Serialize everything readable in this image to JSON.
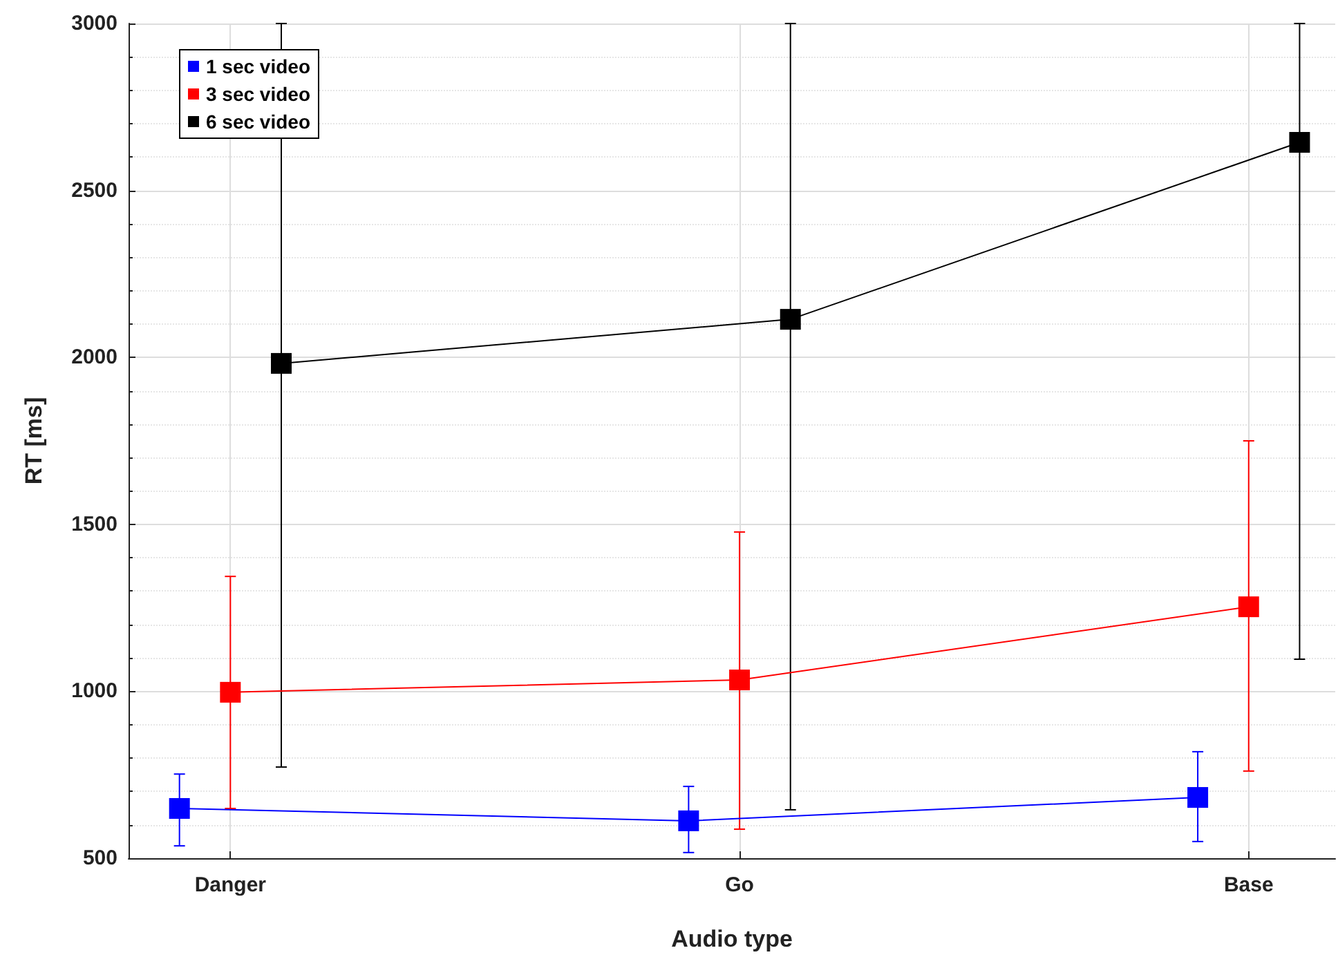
{
  "chart_data": {
    "type": "line",
    "xlabel": "Audio type",
    "ylabel": "RT [ms]",
    "categories": [
      "Danger",
      "Go",
      "Base"
    ],
    "series": [
      {
        "name": "1 sec video",
        "color": "#0000ff",
        "values": [
          649,
          612,
          682
        ],
        "errors": [
          [
            537,
            752
          ],
          [
            517,
            715
          ],
          [
            550,
            819
          ]
        ]
      },
      {
        "name": "3 sec video",
        "color": "#ff0000",
        "values": [
          997,
          1034,
          1253
        ],
        "errors": [
          [
            649,
            1344
          ],
          [
            587,
            1477
          ],
          [
            761,
            1750
          ]
        ]
      },
      {
        "name": "6 sec video",
        "color": "#000000",
        "values": [
          1982,
          2114,
          2644
        ],
        "errors": [
          [
            773,
            3000
          ],
          [
            645,
            3000
          ],
          [
            1096,
            3000
          ]
        ]
      }
    ],
    "ylim": [
      500,
      3000
    ],
    "yticks": [
      500,
      1000,
      1500,
      2000,
      2500,
      3000
    ],
    "grid": true,
    "legend": "top left",
    "marker": "square",
    "line_style": "solid"
  }
}
